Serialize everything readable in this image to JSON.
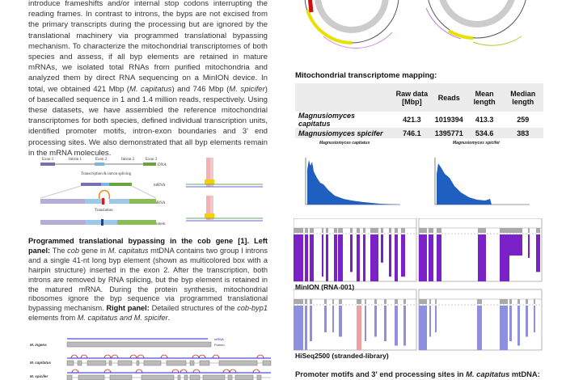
{
  "intro": {
    "text_parts": [
      "introduce frameshifts and/or internal stop codons interrupting the reading frames. In contrast to introns, the byps are not excised from the primary transcripts during the processing but are ignored by the translational machinery via programmed translational bypassing mechanism. To characterize the mitochondrial transcriptomes of both species and assess, if all byp elements are retained in mature mRNAs, we isolated total RNAs from purified mitochondria and analyzed them by direct RNA sequencing on a MinION device. In total, we obtained 421 Mbp (",
      "M. capitatus",
      ") and 746 Mbp (",
      "M. spicifer",
      ") of basecalled sequence in 1 and 1.4 million reads, respectively. Using these datasets, we have assembled the reference mitochondrial transcriptomes for both species, defined individual transcription units, identified promoter motifs, intron-exon boundaries and 3' end processing sites. We also demonstrated that all byp elements remain in the mRNA molecules."
    ]
  },
  "byp_figure": {
    "labels": [
      "Exon 1",
      "Intron 1",
      "Exon 2",
      "Intron 2",
      "Exon 3"
    ],
    "row_labels": [
      "DNA",
      "mRNA",
      "mRNA",
      "Protein"
    ],
    "steps": [
      "Transcription & intron splicing",
      "Translation"
    ]
  },
  "caption": {
    "bold1": "Programmed translational bypassing in the cob gene [1]. Left panel:",
    "t1": " The ",
    "i1": "cob",
    "t2": " gene in ",
    "i2": "M. capitatus",
    "t3": " mtDNA contains two group I introns and a single 41-nt long byp element (shown as multicolored box with a hairpin structure) inserted in the exon 2. After the transcription, both introns are removed by RNA splicing, but the byp element is retained in the matured mRNA. During the protein synthesis, mitochondrial ribosomes ignore the byp sequence via programmed translational bypassing mechanism. ",
    "bold2": "Right panel:",
    "t4": " Detailed structures of the ",
    "i3": "cob-byp1",
    "t5": " elements from ",
    "i4": "M. capitatus and M. spicifer",
    "t6": "."
  },
  "gene_figure": {
    "species": [
      "M. ingens",
      "M. capitatus",
      "M. spicifer"
    ],
    "legend": [
      "mRNA",
      "Protein"
    ]
  },
  "mapping": {
    "title": "Mitochondrial transcriptome mapping:",
    "headers": [
      "",
      "Raw data [Mbp]",
      "Reads",
      "Mean length",
      "Median length"
    ],
    "rows": [
      {
        "species": "Magnusiomyces capitatus",
        "raw": "421.3",
        "reads": "1019394",
        "mean": "413.3",
        "median": "259"
      },
      {
        "species": "Magnusiomyces spicifer",
        "raw": "746.1",
        "reads": "1395771",
        "mean": "534.6",
        "median": "383"
      }
    ]
  },
  "histograms": {
    "titles": [
      "Magnusiomyces capitatus",
      "Magnusiomyces spicifer"
    ],
    "color": "#1f5fbf"
  },
  "coverage": {
    "minion_label": "MinION (RNA-001)",
    "hiseq_label": "HiSeq2500 (stranded-library)",
    "minion_color": "#7a22c8",
    "hiseq_color": "#8f8fe0"
  },
  "promoter": {
    "heading_a": "Promoter motifs and 3' end processing sites in ",
    "heading_i": "M. capitatus",
    "heading_b": " mtDNA:"
  }
}
